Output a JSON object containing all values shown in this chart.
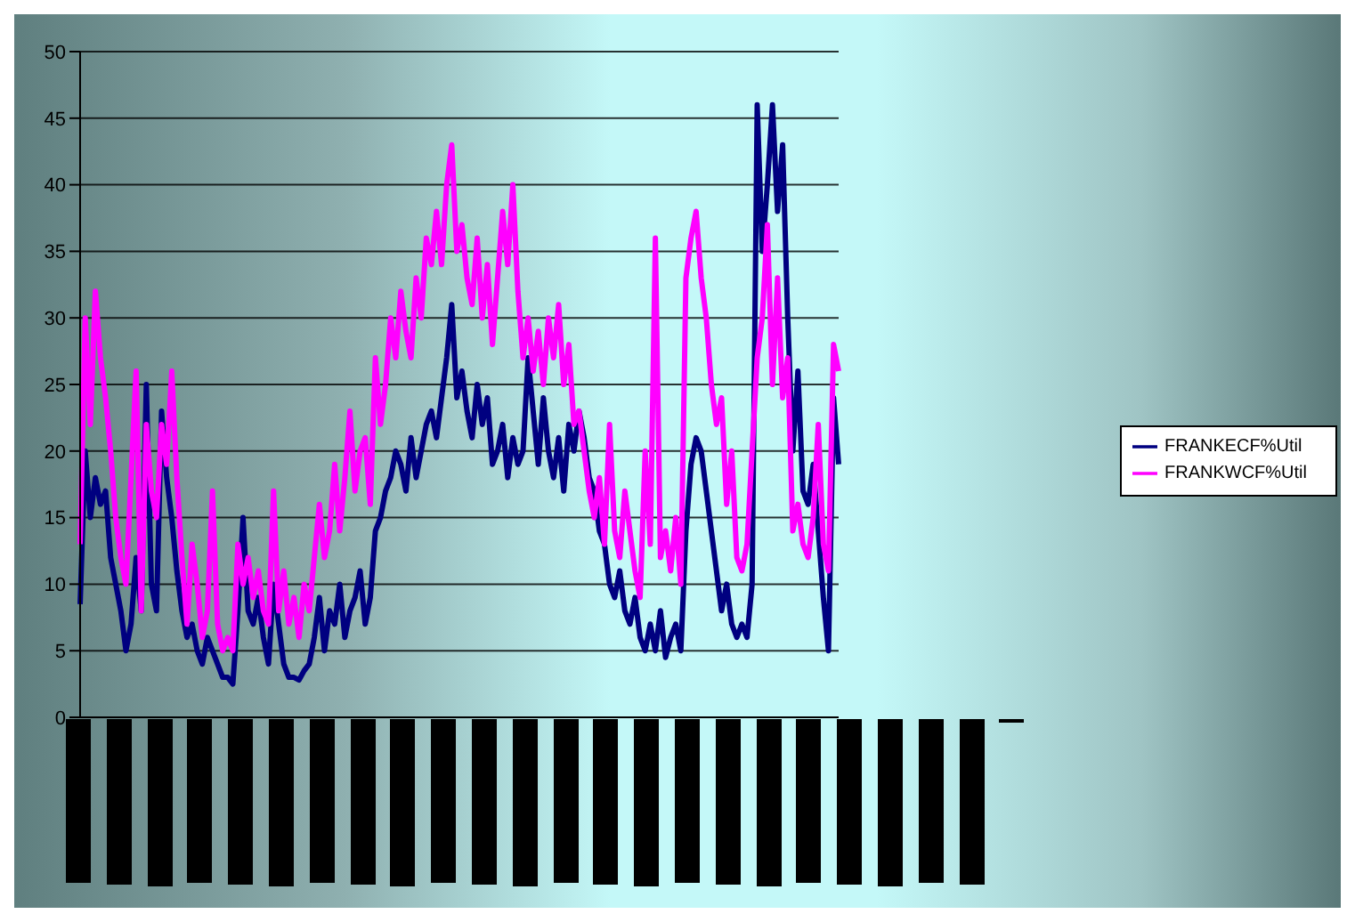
{
  "chart_data": {
    "type": "line",
    "categories": [
      null,
      null,
      null,
      null,
      null,
      null,
      null,
      null,
      null,
      null,
      null,
      null,
      null,
      null,
      null,
      null,
      null,
      null,
      null,
      null,
      null,
      null,
      null,
      null,
      null,
      null,
      null,
      null,
      null,
      null,
      null,
      null,
      null,
      null,
      null,
      null,
      null,
      null,
      null,
      null,
      null,
      null,
      null,
      null,
      null,
      null,
      null,
      null,
      null,
      null,
      null,
      null,
      null,
      null,
      null,
      null,
      null,
      null,
      null,
      null,
      null,
      null,
      null,
      null,
      null,
      null,
      null,
      null,
      null,
      null,
      null,
      null,
      null,
      null,
      null,
      null,
      null,
      null,
      null,
      null,
      null,
      null,
      null,
      null,
      null,
      null,
      null,
      null,
      null,
      null,
      null,
      null,
      null,
      null,
      null,
      null,
      null,
      null,
      null,
      null,
      null,
      null,
      null,
      null,
      null,
      null,
      null,
      null,
      null,
      null,
      null,
      null,
      null,
      null,
      null,
      null,
      null,
      null,
      null,
      null,
      null,
      null,
      null,
      null,
      null,
      null,
      null,
      null,
      null,
      null,
      null,
      null,
      null,
      null,
      null,
      null,
      null,
      null,
      null,
      null,
      null,
      null,
      null,
      null,
      null,
      null,
      null,
      null,
      null,
      null
    ],
    "series": [
      {
        "name": "FRANKECF%Util",
        "color": "#000080",
        "values": [
          8.5,
          20,
          15,
          18,
          16,
          17,
          12,
          10,
          8,
          5,
          7,
          12,
          8,
          25,
          10,
          8,
          23,
          18,
          15,
          11,
          8,
          6,
          7,
          5,
          4,
          6,
          5,
          4,
          3,
          3,
          2.5,
          8,
          15,
          8,
          7,
          9,
          6,
          4,
          10,
          7,
          4,
          3,
          3,
          2.8,
          3.5,
          4,
          6,
          9,
          5,
          8,
          7,
          10,
          6,
          8,
          9,
          11,
          7,
          9,
          14,
          15,
          17,
          18,
          20,
          19,
          17,
          21,
          18,
          20,
          22,
          23,
          21,
          24,
          27,
          31,
          24,
          26,
          23,
          21,
          25,
          22,
          24,
          19,
          20,
          22,
          18,
          21,
          19,
          20,
          27,
          23,
          19,
          24,
          20,
          18,
          21,
          17,
          22,
          20,
          23,
          21,
          18,
          17,
          14,
          13,
          10,
          9,
          11,
          8,
          7,
          9,
          6,
          5,
          7,
          5,
          8,
          4.5,
          6,
          7,
          5,
          14,
          19,
          21,
          20,
          17,
          14,
          11,
          8,
          10,
          7,
          6,
          7,
          6,
          10,
          46,
          35,
          40,
          46,
          38,
          43,
          30,
          20,
          26,
          17,
          16,
          19,
          14,
          9,
          5,
          24,
          19
        ]
      },
      {
        "name": "FRANKWCF%Util",
        "color": "#ff00ff",
        "values": [
          13,
          30,
          22,
          32,
          27,
          24,
          20,
          15,
          12,
          10,
          18,
          26,
          8,
          22,
          17,
          15,
          22,
          19,
          26,
          18,
          12,
          7,
          13,
          10,
          6,
          8,
          17,
          7,
          5,
          6,
          5,
          13,
          10,
          12,
          9,
          11,
          8,
          7,
          17,
          8,
          11,
          7,
          9,
          6,
          10,
          8,
          12,
          16,
          12,
          14,
          19,
          14,
          18,
          23,
          17,
          20,
          21,
          16,
          27,
          22,
          25,
          30,
          27,
          32,
          29,
          27,
          33,
          30,
          36,
          34,
          38,
          34,
          40,
          43,
          35,
          37,
          33,
          31,
          36,
          30,
          34,
          28,
          33,
          38,
          34,
          40,
          32,
          27,
          30,
          26,
          29,
          25,
          30,
          27,
          31,
          25,
          28,
          22,
          23,
          20,
          17,
          15,
          18,
          13,
          22,
          14,
          12,
          17,
          14,
          11,
          9,
          20,
          13,
          36,
          12,
          14,
          11,
          15,
          10,
          33,
          36,
          38,
          33,
          30,
          25,
          22,
          24,
          16,
          20,
          12,
          11,
          13,
          20,
          27,
          30,
          37,
          25,
          33,
          24,
          27,
          14,
          16,
          13,
          12,
          15,
          22,
          13,
          11,
          28,
          26
        ]
      }
    ],
    "ylim": [
      0,
      50
    ],
    "yticks": [
      0,
      5,
      10,
      15,
      20,
      25,
      30,
      35,
      40,
      45,
      50
    ],
    "grid": "y",
    "legend": "right"
  }
}
